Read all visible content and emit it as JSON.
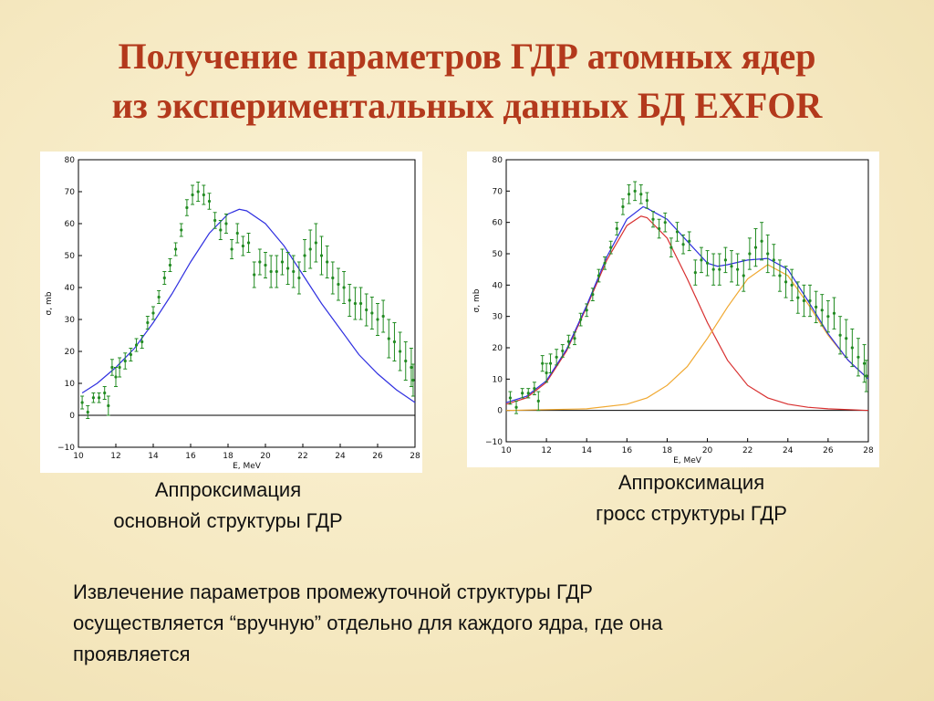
{
  "title": [
    "Получение параметров ГДР атомных ядер",
    "из экспериментальных данных БД EXFOR"
  ],
  "captions": [
    [
      "Аппроксимация",
      "основной структуры ГДР"
    ],
    [
      "Аппроксимация",
      "гросс структуры ГДР"
    ]
  ],
  "body": [
    "Извлечение параметров промежуточной структуры ГДР",
    "осуществляется “вручную” отдельно для каждого ядра, где она",
    "проявляется"
  ],
  "chart_data": [
    {
      "type": "errorbar",
      "x_label": "E, MeV",
      "y_label": "σ, mb",
      "xlim": [
        10,
        28
      ],
      "ylim": [
        -10,
        80
      ],
      "xticks": [
        10,
        12,
        14,
        16,
        18,
        20,
        22,
        24,
        26,
        28
      ],
      "yticks": [
        {
          "value": -10,
          "label": "−10"
        },
        0,
        10,
        20,
        30,
        40,
        50,
        60,
        70,
        80
      ],
      "hline": 0,
      "series": [
        {
          "color": "#228b22",
          "x": [
            10.2,
            10.5,
            10.8,
            11.1,
            11.4,
            11.6,
            11.8,
            12.0,
            12.2,
            12.5,
            12.8,
            13.1,
            13.4,
            13.7,
            14.0,
            14.3,
            14.6,
            14.9,
            15.2,
            15.5,
            15.8,
            16.1,
            16.4,
            16.7,
            17.0,
            17.3,
            17.6,
            17.9,
            18.2,
            18.5,
            18.8,
            19.1,
            19.4,
            19.7,
            20.0,
            20.3,
            20.6,
            20.9,
            21.2,
            21.5,
            21.8,
            22.1,
            22.4,
            22.7,
            23.0,
            23.3,
            23.6,
            23.9,
            24.2,
            24.5,
            24.8,
            25.1,
            25.4,
            25.7,
            26.0,
            26.3,
            26.6,
            26.9,
            27.2,
            27.5,
            27.8,
            27.9
          ],
          "values": [
            4,
            1,
            5.5,
            5.5,
            7,
            3,
            15,
            12,
            15,
            17,
            19,
            22,
            23,
            29,
            32,
            37,
            43,
            47,
            52,
            58,
            65,
            69,
            70,
            69,
            67,
            61,
            58,
            60,
            52,
            57,
            53,
            54,
            44,
            48,
            47,
            45,
            45,
            48,
            46,
            45,
            43,
            50,
            52,
            54,
            50,
            48,
            43,
            41,
            40,
            36,
            35,
            35,
            33,
            32,
            30,
            31,
            24,
            23,
            20,
            17,
            15,
            11
          ],
          "errors": [
            2,
            2,
            1.5,
            1.5,
            2,
            3,
            2.5,
            3,
            3,
            2.5,
            2,
            2,
            2,
            2,
            2,
            2,
            2,
            2,
            2,
            2,
            2.5,
            3,
            3,
            3,
            2.5,
            2.5,
            3,
            3,
            3,
            3,
            3,
            3,
            4,
            4,
            4,
            5,
            5,
            4,
            5,
            5,
            5,
            5,
            6,
            6,
            6,
            5,
            5,
            5,
            5,
            5,
            5,
            5,
            5,
            5,
            5,
            5,
            6,
            6,
            6,
            6,
            6,
            5
          ]
        }
      ],
      "curves": [
        {
          "color": "#3030e0",
          "x": [
            10.2,
            11,
            12,
            13,
            14,
            15,
            16,
            17,
            18,
            18.6,
            19,
            20,
            21,
            22,
            23,
            24,
            25,
            26,
            27,
            28
          ],
          "values": [
            7,
            10,
            15,
            21,
            29,
            38,
            48,
            57,
            63,
            64.5,
            64,
            60,
            53,
            44,
            35,
            27,
            19,
            13,
            8,
            4
          ]
        }
      ]
    },
    {
      "type": "errorbar",
      "x_label": "E, MeV",
      "y_label": "σ, mb",
      "xlim": [
        10,
        28
      ],
      "ylim": [
        -10,
        80
      ],
      "xticks": [
        10,
        12,
        14,
        16,
        18,
        20,
        22,
        24,
        26,
        28
      ],
      "yticks": [
        {
          "value": -10,
          "label": "−10"
        },
        0,
        10,
        20,
        30,
        40,
        50,
        60,
        70,
        80
      ],
      "hline": 0,
      "series": [
        {
          "color": "#228b22",
          "x": [
            10.2,
            10.5,
            10.8,
            11.1,
            11.4,
            11.6,
            11.8,
            12.0,
            12.2,
            12.5,
            12.8,
            13.1,
            13.4,
            13.7,
            14.0,
            14.3,
            14.6,
            14.9,
            15.2,
            15.5,
            15.8,
            16.1,
            16.4,
            16.7,
            17.0,
            17.3,
            17.6,
            17.9,
            18.2,
            18.5,
            18.8,
            19.1,
            19.4,
            19.7,
            20.0,
            20.3,
            20.6,
            20.9,
            21.2,
            21.5,
            21.8,
            22.1,
            22.4,
            22.7,
            23.0,
            23.3,
            23.6,
            23.9,
            24.2,
            24.5,
            24.8,
            25.1,
            25.4,
            25.7,
            26.0,
            26.3,
            26.6,
            26.9,
            27.2,
            27.5,
            27.8,
            27.9
          ],
          "values": [
            4,
            1,
            5.5,
            5.5,
            7,
            3,
            15,
            12,
            15,
            17,
            19,
            22,
            23,
            29,
            32,
            37,
            43,
            47,
            52,
            58,
            65,
            69,
            70,
            69,
            67,
            61,
            58,
            60,
            52,
            57,
            53,
            54,
            44,
            48,
            47,
            45,
            45,
            48,
            46,
            45,
            43,
            50,
            52,
            54,
            50,
            48,
            43,
            41,
            40,
            36,
            35,
            35,
            33,
            32,
            30,
            31,
            24,
            23,
            20,
            17,
            15,
            11
          ],
          "errors": [
            2,
            2,
            1.5,
            1.5,
            2,
            3,
            2.5,
            3,
            3,
            2.5,
            2,
            2,
            2,
            2,
            2,
            2,
            2,
            2,
            2,
            2,
            2.5,
            3,
            3,
            3,
            2.5,
            2.5,
            3,
            3,
            3,
            3,
            3,
            3,
            4,
            4,
            4,
            5,
            5,
            4,
            5,
            5,
            5,
            5,
            6,
            6,
            6,
            5,
            5,
            5,
            5,
            5,
            5,
            5,
            5,
            5,
            5,
            5,
            6,
            6,
            6,
            6,
            6,
            5
          ]
        }
      ],
      "curves": [
        {
          "color": "#d83030",
          "x": [
            10,
            11,
            12,
            13,
            14,
            15,
            16,
            16.7,
            17,
            18,
            19,
            20,
            21,
            22,
            23,
            24,
            25,
            26,
            28
          ],
          "values": [
            2,
            4,
            9,
            19,
            33,
            48,
            59,
            62,
            61.5,
            55,
            42,
            28,
            16,
            8,
            4,
            2,
            1,
            0.5,
            0
          ]
        },
        {
          "color": "#f0a830",
          "x": [
            10,
            14,
            16,
            17,
            18,
            19,
            20,
            21,
            22,
            23,
            24,
            25,
            26,
            27,
            28
          ],
          "values": [
            0,
            0.5,
            2,
            4,
            8,
            14,
            23,
            33,
            42,
            46.5,
            43,
            34,
            24,
            16,
            10
          ]
        },
        {
          "color": "#3030e0",
          "x": [
            10,
            11,
            12,
            13,
            14,
            15,
            16,
            16.8,
            17,
            18,
            19,
            20,
            20.5,
            21,
            22,
            23,
            24,
            25,
            26,
            27,
            28
          ],
          "values": [
            2.5,
            4.5,
            9.5,
            19.5,
            33.5,
            49,
            61,
            65,
            64.5,
            61,
            54,
            47,
            46,
            46.5,
            48,
            48.5,
            45,
            35,
            24.5,
            16,
            10
          ]
        }
      ]
    }
  ]
}
